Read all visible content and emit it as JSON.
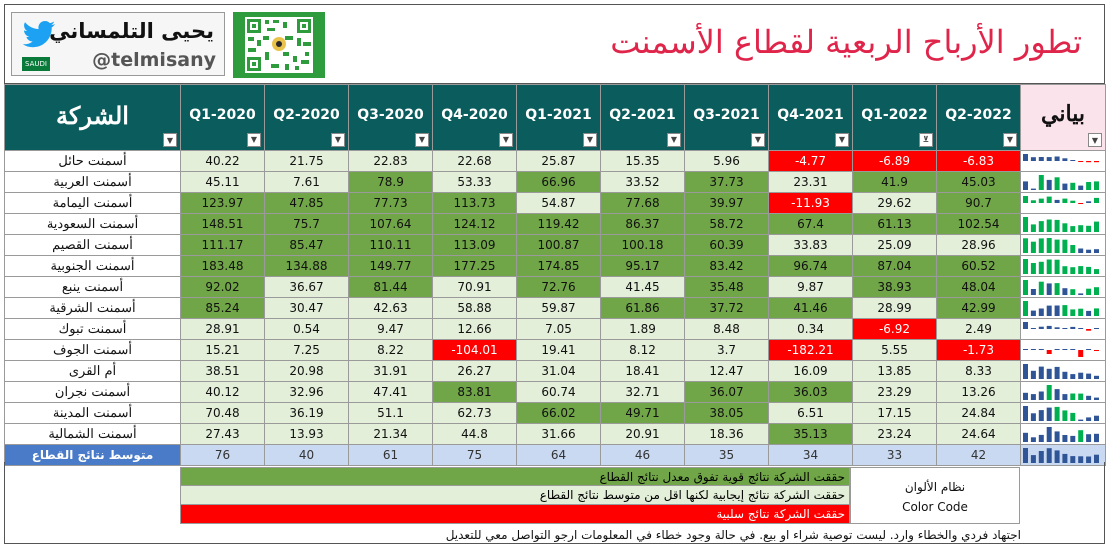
{
  "title": "تطور الأرباح الربعية لقطاع الأسمنت",
  "brand": {
    "name": "يحيى التلمساني",
    "handle": "@telmisany",
    "flag_text": "SAUDI"
  },
  "icons": {
    "twitter": "twitter-bird-icon",
    "qr": "qr-code-icon",
    "filter": "filter-icon",
    "dropdown": "dropdown-arrow-icon"
  },
  "colors": {
    "strong": "#70a647",
    "positive": "#e3efd9",
    "negative": "#ff0000",
    "header": "#0b5c5d",
    "title": "#e0254b",
    "average_label": "#4a7bc8",
    "average_row": "#c9d9f2"
  },
  "table": {
    "company_header": "الشركة",
    "sparkline_header": "بياني",
    "average_label": "متوسط نتائج القطاع"
  },
  "chart_data": {
    "type": "table",
    "quarters": [
      "Q1-2020",
      "Q2-2020",
      "Q3-2020",
      "Q4-2020",
      "Q1-2021",
      "Q2-2021",
      "Q3-2021",
      "Q4-2021",
      "Q1-2022",
      "Q2-2022"
    ],
    "rows": [
      {
        "company": "أسمنت حائل",
        "values": [
          "40.22",
          "21.75",
          "22.83",
          "22.68",
          "25.87",
          "15.35",
          "5.96",
          "-4.77",
          "-6.89",
          "-6.83"
        ]
      },
      {
        "company": "أسمنت العربية",
        "values": [
          "45.11",
          "7.61",
          "78.9",
          "53.33",
          "66.96",
          "33.52",
          "37.73",
          "23.31",
          "41.9",
          "45.03"
        ]
      },
      {
        "company": "أسمنت اليمامة",
        "values": [
          "123.97",
          "47.85",
          "77.73",
          "113.73",
          "54.87",
          "77.68",
          "39.97",
          "-11.93",
          "29.62",
          "90.7"
        ]
      },
      {
        "company": "أسمنت السعودية",
        "values": [
          "148.51",
          "75.7",
          "107.64",
          "124.12",
          "119.42",
          "86.37",
          "58.72",
          "67.4",
          "61.13",
          "102.54"
        ]
      },
      {
        "company": "أسمنت القصيم",
        "values": [
          "111.17",
          "85.47",
          "110.11",
          "113.09",
          "100.87",
          "100.18",
          "60.39",
          "33.83",
          "25.09",
          "28.96"
        ]
      },
      {
        "company": "أسمنت الجنوبية",
        "values": [
          "183.48",
          "134.88",
          "149.77",
          "177.25",
          "174.85",
          "95.17",
          "83.42",
          "96.74",
          "87.04",
          "60.52"
        ]
      },
      {
        "company": "أسمنت ينبع",
        "values": [
          "92.02",
          "36.67",
          "81.44",
          "70.91",
          "72.76",
          "41.45",
          "35.48",
          "9.87",
          "38.93",
          "48.04"
        ]
      },
      {
        "company": "أسمنت الشرقية",
        "values": [
          "85.24",
          "30.47",
          "42.63",
          "58.88",
          "59.87",
          "61.86",
          "37.72",
          "41.46",
          "28.99",
          "42.99"
        ]
      },
      {
        "company": "أسمنت تبوك",
        "values": [
          "28.91",
          "0.54",
          "9.47",
          "12.66",
          "7.05",
          "1.89",
          "8.48",
          "0.34",
          "-6.92",
          "2.49"
        ]
      },
      {
        "company": "أسمنت الجوف",
        "values": [
          "15.21",
          "7.25",
          "8.22",
          "-104.01",
          "19.41",
          "8.12",
          "3.7",
          "-182.21",
          "5.55",
          "-1.73"
        ]
      },
      {
        "company": "أم القرى",
        "values": [
          "38.51",
          "20.98",
          "31.91",
          "26.27",
          "31.04",
          "18.41",
          "12.47",
          "16.09",
          "13.85",
          "8.33"
        ]
      },
      {
        "company": "أسمنت نجران",
        "values": [
          "40.12",
          "32.96",
          "47.41",
          "83.81",
          "60.74",
          "32.71",
          "36.07",
          "36.03",
          "23.29",
          "13.26"
        ]
      },
      {
        "company": "أسمنت المدينة",
        "values": [
          "70.48",
          "36.19",
          "51.1",
          "62.73",
          "66.02",
          "49.71",
          "38.05",
          "6.51",
          "17.15",
          "24.84"
        ]
      },
      {
        "company": "أسمنت الشمالية",
        "values": [
          "27.43",
          "13.93",
          "21.34",
          "44.8",
          "31.66",
          "20.91",
          "18.36",
          "35.13",
          "23.24",
          "24.64"
        ]
      }
    ],
    "average": [
      "76",
      "40",
      "61",
      "75",
      "64",
      "46",
      "35",
      "34",
      "33",
      "42"
    ]
  },
  "legend": {
    "title": "نظام الألوان",
    "subtitle": "Color Code",
    "items": [
      {
        "text": "حققت الشركة نتائج قوية تفوق معدل نتائج القطاع",
        "color": "#70a647"
      },
      {
        "text": "حققت الشركة نتائج إيجابية لكنها اقل من متوسط نتائج القطاع",
        "color": "#e3efd9"
      },
      {
        "text": "حققت الشركة نتائج سلبية",
        "color": "#ff0000"
      }
    ]
  },
  "disclaimer": "اجتهاد فردي والخطاء وارد. ليست توصية شراء او بيع. في حالة وجود خطاء في المعلومات ارجو التواصل معي للتعديل"
}
